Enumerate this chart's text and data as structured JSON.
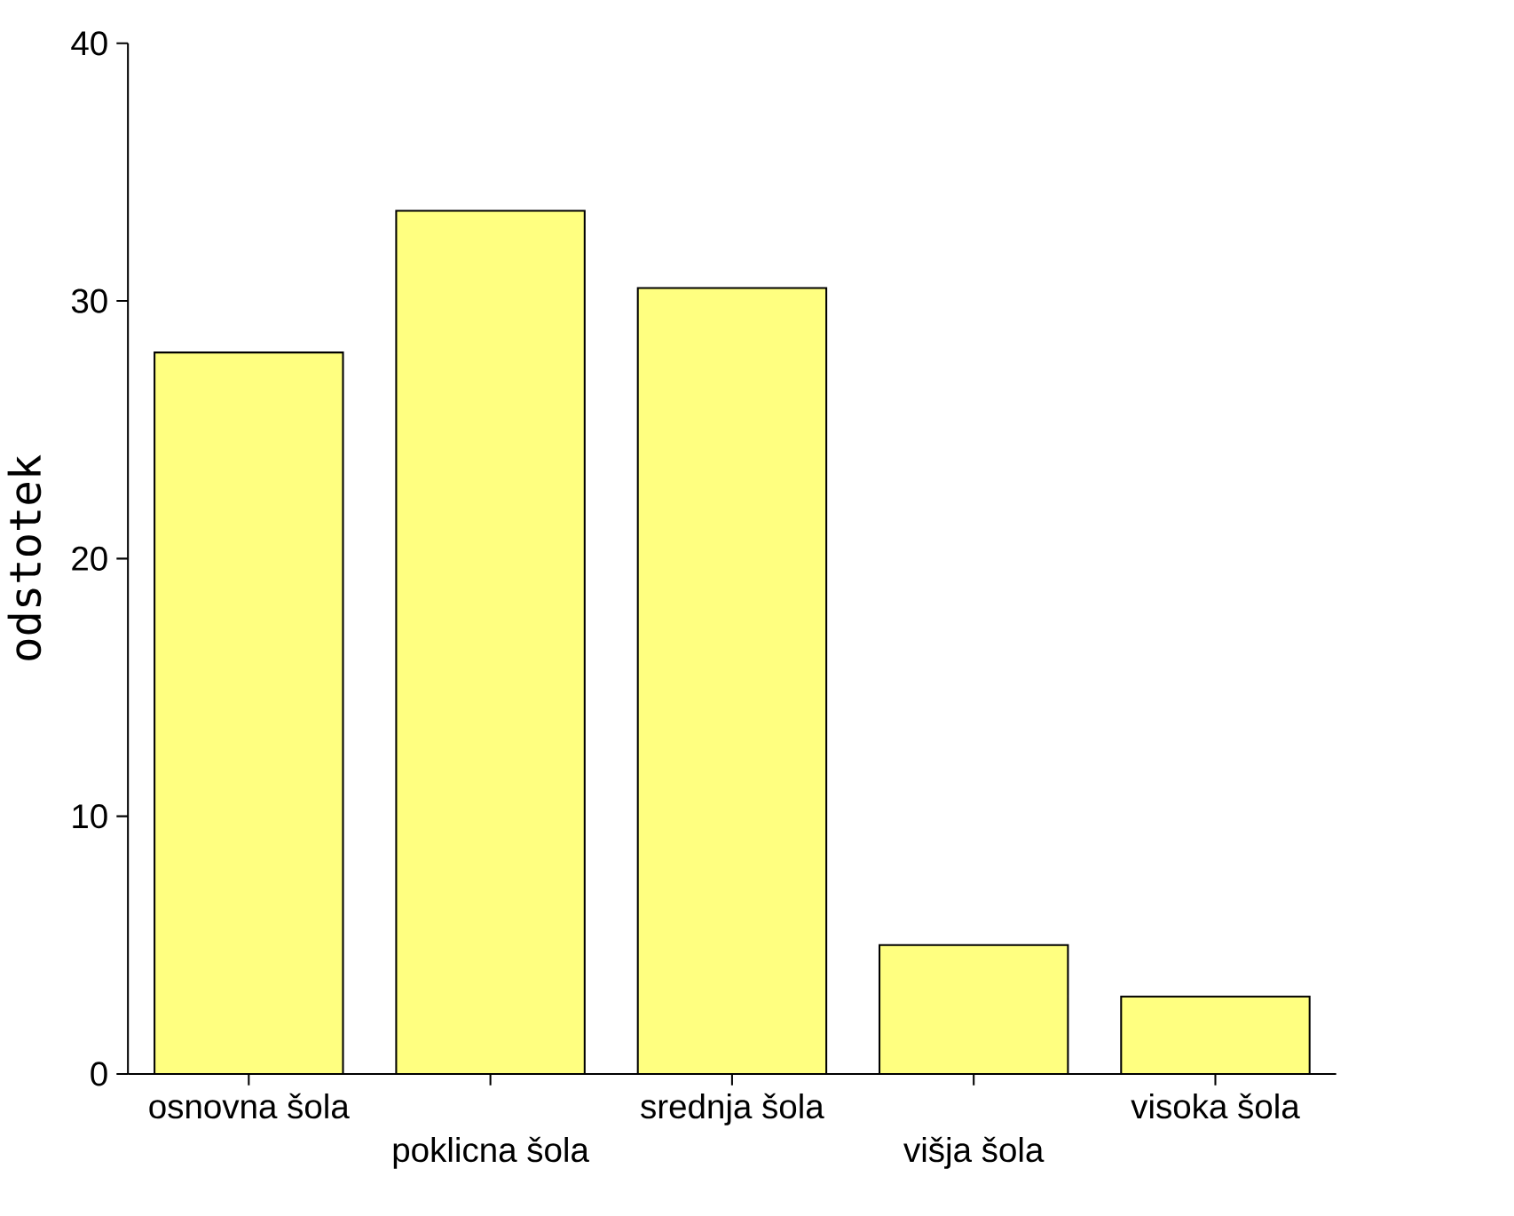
{
  "chart_data": {
    "type": "bar",
    "ylabel": "odstotek",
    "categories": [
      "osnovna šola",
      "poklicna šola",
      "srednja šola",
      "višja šola",
      "visoka šola"
    ],
    "values": [
      28.0,
      33.5,
      30.5,
      5.0,
      3.0
    ],
    "color": "#ffff80",
    "ylim": [
      0,
      40
    ],
    "yticks": [
      0,
      10,
      20,
      30,
      40
    ],
    "grid": false
  }
}
